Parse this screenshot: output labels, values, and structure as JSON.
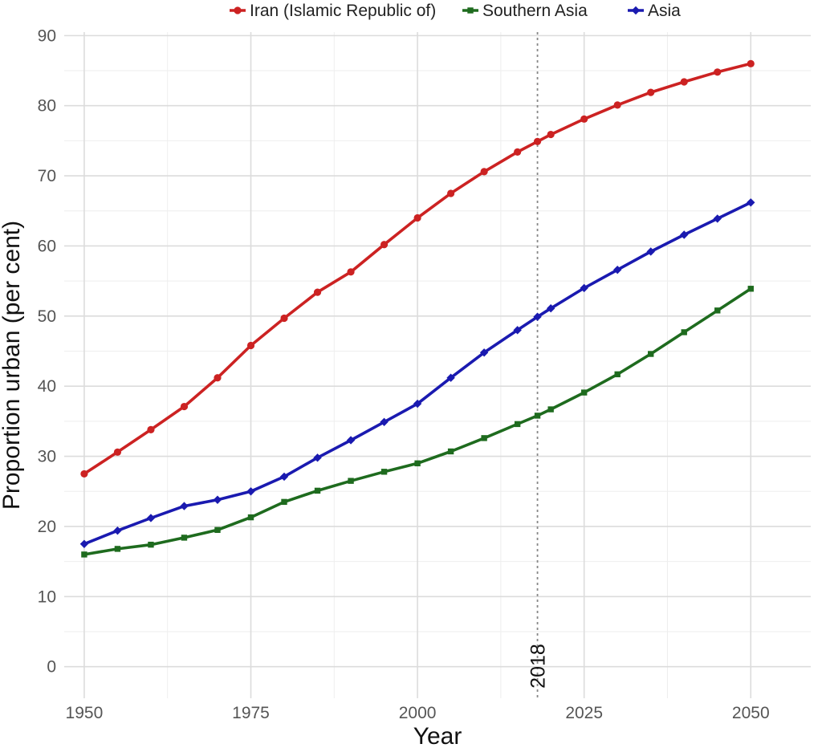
{
  "chart_data": {
    "type": "line",
    "xlabel": "Year",
    "ylabel": "Proportion urban (per cent)",
    "xlim": [
      1947,
      2059
    ],
    "ylim": [
      -4.5,
      90.5
    ],
    "x_ticks": [
      1950,
      1975,
      2000,
      2025,
      2050
    ],
    "y_ticks": [
      0,
      10,
      20,
      30,
      40,
      50,
      60,
      70,
      80,
      90
    ],
    "grid": true,
    "legend_position": "top",
    "annotation": {
      "x": 2018,
      "label": "2018",
      "style": "dotted vertical line"
    },
    "x": [
      1950,
      1955,
      1960,
      1965,
      1970,
      1975,
      1980,
      1985,
      1990,
      1995,
      2000,
      2005,
      2010,
      2015,
      2018,
      2020,
      2025,
      2030,
      2035,
      2040,
      2045,
      2050
    ],
    "series": [
      {
        "name": "Iran (Islamic Republic of)",
        "color": "#cc2222",
        "marker": "circle",
        "values": [
          27.5,
          30.6,
          33.8,
          37.1,
          41.2,
          45.8,
          49.7,
          53.4,
          56.3,
          60.2,
          64.0,
          67.5,
          70.6,
          73.4,
          74.9,
          75.9,
          78.1,
          80.1,
          81.9,
          83.4,
          84.8,
          86.0
        ]
      },
      {
        "name": "Southern Asia",
        "color": "#1e6b1e",
        "marker": "square",
        "values": [
          16.0,
          16.8,
          17.4,
          18.4,
          19.5,
          21.3,
          23.5,
          25.1,
          26.5,
          27.8,
          29.0,
          30.7,
          32.6,
          34.6,
          35.8,
          36.7,
          39.1,
          41.7,
          44.6,
          47.7,
          50.8,
          53.9
        ]
      },
      {
        "name": "Asia",
        "color": "#1a1ab0",
        "marker": "diamond",
        "values": [
          17.5,
          19.4,
          21.2,
          22.9,
          23.8,
          25.0,
          27.1,
          29.8,
          32.3,
          34.9,
          37.5,
          41.2,
          44.8,
          48.0,
          49.9,
          51.1,
          54.0,
          56.6,
          59.2,
          61.6,
          63.9,
          66.2
        ]
      }
    ]
  }
}
